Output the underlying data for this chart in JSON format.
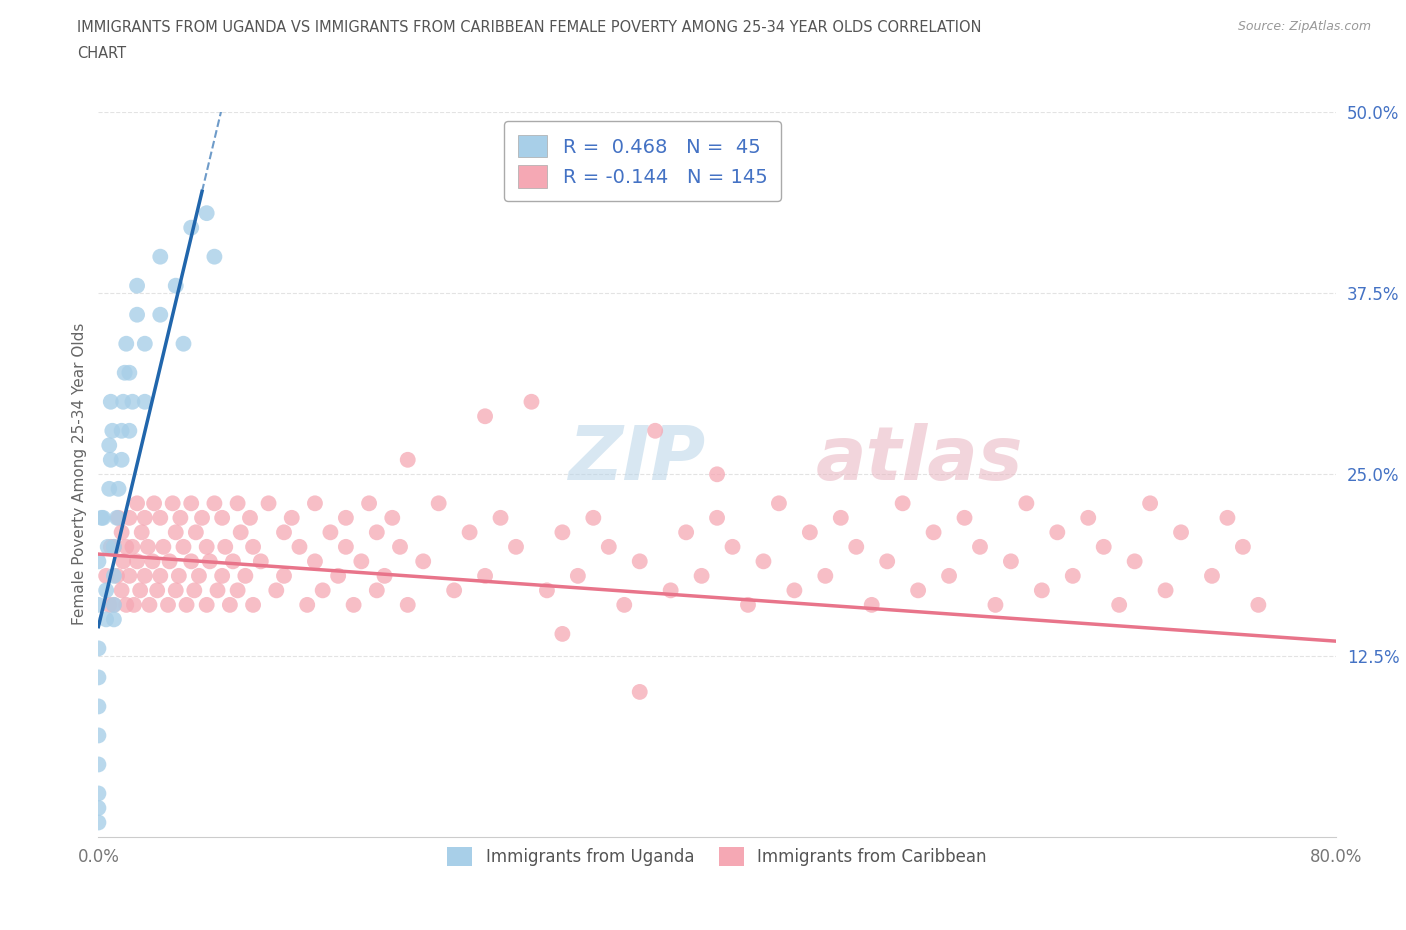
{
  "title_line1": "IMMIGRANTS FROM UGANDA VS IMMIGRANTS FROM CARIBBEAN FEMALE POVERTY AMONG 25-34 YEAR OLDS CORRELATION",
  "title_line2": "CHART",
  "source_text": "Source: ZipAtlas.com",
  "ylabel": "Female Poverty Among 25-34 Year Olds",
  "xlim": [
    0.0,
    0.8
  ],
  "ylim": [
    0.0,
    0.5
  ],
  "xticks": [
    0.0,
    0.1,
    0.2,
    0.3,
    0.4,
    0.5,
    0.6,
    0.7,
    0.8
  ],
  "xticklabels": [
    "0.0%",
    "",
    "",
    "",
    "",
    "",
    "",
    "",
    "80.0%"
  ],
  "yticks": [
    0.0,
    0.125,
    0.25,
    0.375,
    0.5
  ],
  "yticklabels_right": [
    "",
    "12.5%",
    "25.0%",
    "37.5%",
    "50.0%"
  ],
  "uganda_color": "#a8cfe8",
  "caribbean_color": "#f5a8b4",
  "uganda_R": 0.468,
  "uganda_N": 45,
  "caribbean_R": -0.144,
  "caribbean_N": 145,
  "uganda_trend_color": "#2166ac",
  "caribbean_trend_color": "#e8748a",
  "legend_label_uganda": "Immigrants from Uganda",
  "legend_label_caribbean": "Immigrants from Caribbean",
  "watermark_zip": "ZIP",
  "watermark_atlas": "atlas",
  "background_color": "#ffffff",
  "grid_color": "#dddddd",
  "title_color": "#555555",
  "ylabel_color": "#666666",
  "source_color": "#999999",
  "legend_text_color": "#4472c4",
  "uganda_x": [
    0.0,
    0.0,
    0.0,
    0.0,
    0.0,
    0.0,
    0.0,
    0.0,
    0.0,
    0.0,
    0.002,
    0.003,
    0.005,
    0.005,
    0.006,
    0.007,
    0.007,
    0.008,
    0.008,
    0.009,
    0.01,
    0.01,
    0.01,
    0.01,
    0.012,
    0.013,
    0.015,
    0.015,
    0.016,
    0.017,
    0.018,
    0.02,
    0.02,
    0.022,
    0.025,
    0.025,
    0.03,
    0.03,
    0.04,
    0.04,
    0.05,
    0.055,
    0.06,
    0.07,
    0.075
  ],
  "uganda_y": [
    0.01,
    0.02,
    0.03,
    0.05,
    0.07,
    0.09,
    0.11,
    0.13,
    0.16,
    0.19,
    0.22,
    0.22,
    0.15,
    0.17,
    0.2,
    0.24,
    0.27,
    0.26,
    0.3,
    0.28,
    0.15,
    0.16,
    0.18,
    0.2,
    0.22,
    0.24,
    0.26,
    0.28,
    0.3,
    0.32,
    0.34,
    0.28,
    0.32,
    0.3,
    0.36,
    0.38,
    0.3,
    0.34,
    0.36,
    0.4,
    0.38,
    0.34,
    0.42,
    0.43,
    0.4
  ],
  "caribbean_x": [
    0.005,
    0.007,
    0.008,
    0.01,
    0.01,
    0.012,
    0.013,
    0.015,
    0.015,
    0.016,
    0.018,
    0.018,
    0.02,
    0.02,
    0.022,
    0.023,
    0.025,
    0.025,
    0.027,
    0.028,
    0.03,
    0.03,
    0.032,
    0.033,
    0.035,
    0.036,
    0.038,
    0.04,
    0.04,
    0.042,
    0.045,
    0.046,
    0.048,
    0.05,
    0.05,
    0.052,
    0.053,
    0.055,
    0.057,
    0.06,
    0.06,
    0.062,
    0.063,
    0.065,
    0.067,
    0.07,
    0.07,
    0.072,
    0.075,
    0.077,
    0.08,
    0.08,
    0.082,
    0.085,
    0.087,
    0.09,
    0.09,
    0.092,
    0.095,
    0.098,
    0.1,
    0.1,
    0.105,
    0.11,
    0.115,
    0.12,
    0.12,
    0.125,
    0.13,
    0.135,
    0.14,
    0.14,
    0.145,
    0.15,
    0.155,
    0.16,
    0.16,
    0.165,
    0.17,
    0.175,
    0.18,
    0.18,
    0.185,
    0.19,
    0.195,
    0.2,
    0.21,
    0.22,
    0.23,
    0.24,
    0.25,
    0.26,
    0.27,
    0.28,
    0.29,
    0.3,
    0.31,
    0.32,
    0.33,
    0.34,
    0.35,
    0.36,
    0.37,
    0.38,
    0.39,
    0.4,
    0.41,
    0.42,
    0.43,
    0.44,
    0.45,
    0.46,
    0.47,
    0.48,
    0.49,
    0.5,
    0.51,
    0.52,
    0.53,
    0.54,
    0.55,
    0.56,
    0.57,
    0.58,
    0.59,
    0.6,
    0.61,
    0.62,
    0.63,
    0.64,
    0.65,
    0.66,
    0.67,
    0.68,
    0.69,
    0.7,
    0.72,
    0.73,
    0.74,
    0.75,
    0.2,
    0.25,
    0.3,
    0.35,
    0.4
  ],
  "caribbean_y": [
    0.18,
    0.16,
    0.2,
    0.16,
    0.2,
    0.18,
    0.22,
    0.17,
    0.21,
    0.19,
    0.16,
    0.2,
    0.18,
    0.22,
    0.2,
    0.16,
    0.19,
    0.23,
    0.17,
    0.21,
    0.18,
    0.22,
    0.2,
    0.16,
    0.19,
    0.23,
    0.17,
    0.18,
    0.22,
    0.2,
    0.16,
    0.19,
    0.23,
    0.17,
    0.21,
    0.18,
    0.22,
    0.2,
    0.16,
    0.19,
    0.23,
    0.17,
    0.21,
    0.18,
    0.22,
    0.2,
    0.16,
    0.19,
    0.23,
    0.17,
    0.18,
    0.22,
    0.2,
    0.16,
    0.19,
    0.23,
    0.17,
    0.21,
    0.18,
    0.22,
    0.2,
    0.16,
    0.19,
    0.23,
    0.17,
    0.21,
    0.18,
    0.22,
    0.2,
    0.16,
    0.19,
    0.23,
    0.17,
    0.21,
    0.18,
    0.22,
    0.2,
    0.16,
    0.19,
    0.23,
    0.17,
    0.21,
    0.18,
    0.22,
    0.2,
    0.16,
    0.19,
    0.23,
    0.17,
    0.21,
    0.18,
    0.22,
    0.2,
    0.3,
    0.17,
    0.21,
    0.18,
    0.22,
    0.2,
    0.16,
    0.19,
    0.28,
    0.17,
    0.21,
    0.18,
    0.22,
    0.2,
    0.16,
    0.19,
    0.23,
    0.17,
    0.21,
    0.18,
    0.22,
    0.2,
    0.16,
    0.19,
    0.23,
    0.17,
    0.21,
    0.18,
    0.22,
    0.2,
    0.16,
    0.19,
    0.23,
    0.17,
    0.21,
    0.18,
    0.22,
    0.2,
    0.16,
    0.19,
    0.23,
    0.17,
    0.21,
    0.18,
    0.22,
    0.2,
    0.16,
    0.26,
    0.29,
    0.14,
    0.1,
    0.25
  ]
}
